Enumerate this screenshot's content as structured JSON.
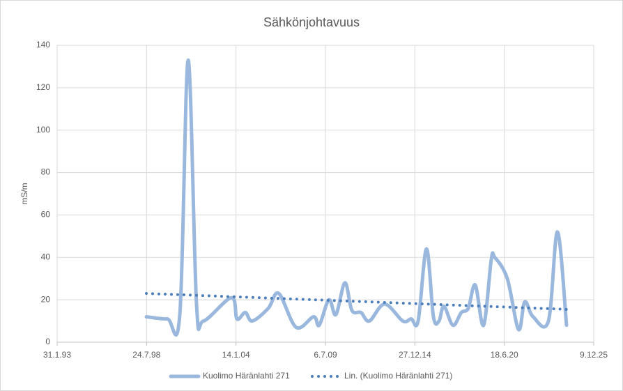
{
  "chart_data": {
    "type": "line",
    "title": "Sähkönjohtavuus",
    "y_label": "mS/m",
    "xlim": [
      34000,
      46000
    ],
    "xticks": [
      {
        "value": 34000,
        "label": "31.1.93"
      },
      {
        "value": 36000,
        "label": "24.7.98"
      },
      {
        "value": 38000,
        "label": "14.1.04"
      },
      {
        "value": 40000,
        "label": "6.7.09"
      },
      {
        "value": 42000,
        "label": "27.12.14"
      },
      {
        "value": 44000,
        "label": "18.6.20"
      },
      {
        "value": 46000,
        "label": "9.12.25"
      }
    ],
    "ylim": [
      0,
      140
    ],
    "yticks": [
      0,
      20,
      40,
      60,
      80,
      100,
      120,
      140
    ],
    "grid": true,
    "legend": "bottom",
    "series": [
      {
        "name": "Kuolimo Häränlahti 271",
        "color": "#9ab8dd",
        "style": "solid",
        "x": [
          35995,
          36462,
          36743,
          36930,
          37117,
          37273,
          37896,
          38021,
          38208,
          38364,
          38722,
          38956,
          39345,
          39735,
          39860,
          40078,
          40234,
          40436,
          40592,
          40795,
          40982,
          41324,
          41730,
          41917,
          42073,
          42260,
          42415,
          42540,
          42649,
          42852,
          43039,
          43195,
          43350,
          43537,
          43709,
          43787,
          44067,
          44317,
          44457,
          44644,
          44987,
          45189,
          45392
        ],
        "values": [
          12,
          11,
          13,
          133,
          18,
          10,
          21,
          11,
          14,
          10,
          16,
          23,
          7,
          12,
          8,
          20,
          13,
          28,
          15,
          14,
          10,
          18,
          10,
          11,
          10,
          44,
          12,
          10,
          17,
          8,
          14,
          16,
          27,
          8,
          39,
          40,
          30,
          6,
          19,
          12,
          10,
          52,
          8
        ]
      },
      {
        "name": "Lin. (Kuolimo Häränlahti 271)",
        "color": "#4a7ebb",
        "style": "dotted",
        "x": [
          35995,
          45392
        ],
        "values": [
          23,
          15.5
        ]
      }
    ]
  }
}
